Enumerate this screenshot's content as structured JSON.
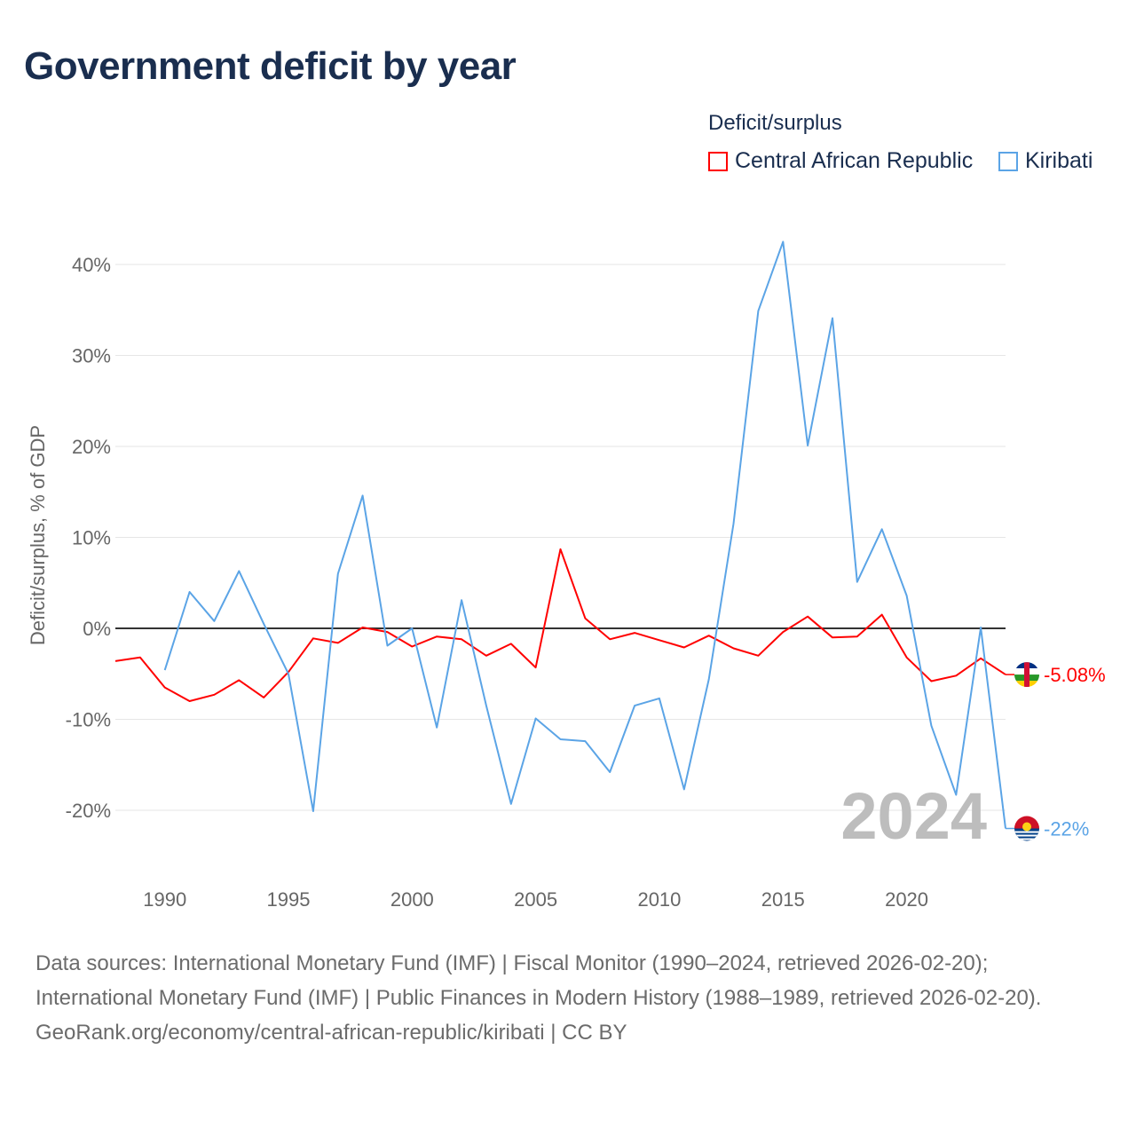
{
  "chart_data": {
    "type": "line",
    "title": "Government deficit by year",
    "ylabel": "Deficit/surplus, % of GDP",
    "xlabel": "",
    "xlim": [
      1988,
      2024
    ],
    "ylim": [
      -25,
      45
    ],
    "y_ticks": [
      -20,
      -10,
      0,
      10,
      20,
      30,
      40
    ],
    "y_tick_labels": [
      "-20%",
      "-10%",
      "0%",
      "10%",
      "20%",
      "30%",
      "40%"
    ],
    "x_ticks": [
      1990,
      1995,
      2000,
      2005,
      2010,
      2015,
      2020
    ],
    "x_tick_labels": [
      "1990",
      "1995",
      "2000",
      "2005",
      "2010",
      "2015",
      "2020"
    ],
    "grid": true,
    "legend_title": "Deficit/surplus",
    "legend_placement": "top-right",
    "year_label": "2024",
    "series": [
      {
        "name": "Central African Republic",
        "color": "#ff0000",
        "end_label": "-5.08%",
        "x": [
          1988,
          1989,
          1990,
          1991,
          1992,
          1993,
          1994,
          1995,
          1996,
          1997,
          1998,
          1999,
          2000,
          2001,
          2002,
          2003,
          2004,
          2005,
          2006,
          2007,
          2008,
          2009,
          2010,
          2011,
          2012,
          2013,
          2014,
          2015,
          2016,
          2017,
          2018,
          2019,
          2020,
          2021,
          2022,
          2023,
          2024
        ],
        "values": [
          -3.6,
          -3.2,
          -6.5,
          -8.0,
          -7.3,
          -5.7,
          -7.6,
          -4.8,
          -1.1,
          -1.6,
          0.1,
          -0.4,
          -2.0,
          -0.9,
          -1.2,
          -3.0,
          -1.7,
          -4.3,
          8.7,
          1.1,
          -1.2,
          -0.5,
          -1.3,
          -2.1,
          -0.8,
          -2.2,
          -3.0,
          -0.4,
          1.3,
          -1.0,
          -0.9,
          1.5,
          -3.2,
          -5.8,
          -5.2,
          -3.3,
          -5.08
        ]
      },
      {
        "name": "Kiribati",
        "color": "#5ba4e6",
        "end_label": "-22%",
        "x": [
          1990,
          1991,
          1992,
          1993,
          1994,
          1995,
          1996,
          1997,
          1998,
          1999,
          2000,
          2001,
          2002,
          2003,
          2004,
          2005,
          2006,
          2007,
          2008,
          2009,
          2010,
          2011,
          2012,
          2013,
          2014,
          2015,
          2016,
          2017,
          2018,
          2019,
          2020,
          2021,
          2022,
          2023,
          2024
        ],
        "values": [
          -4.6,
          4.0,
          0.8,
          6.3,
          0.5,
          -5.0,
          -20.1,
          6.0,
          14.6,
          -1.9,
          0.0,
          -10.9,
          3.1,
          -8.5,
          -19.3,
          -9.9,
          -12.2,
          -12.4,
          -15.8,
          -8.5,
          -7.7,
          -17.7,
          -5.6,
          11.5,
          34.9,
          42.5,
          20.1,
          34.1,
          5.1,
          10.9,
          3.6,
          -10.7,
          -18.3,
          0.1,
          -22.0
        ]
      }
    ]
  },
  "footer": {
    "sources": "Data sources: International Monetary Fund (IMF) | Fiscal Monitor (1990–2024, retrieved 2026-02-20); International Monetary Fund (IMF) | Public Finances in Modern History (1988–1989, retrieved 2026-02-20).",
    "link": "GeoRank.org/economy/central-african-republic/kiribati | CC BY"
  }
}
